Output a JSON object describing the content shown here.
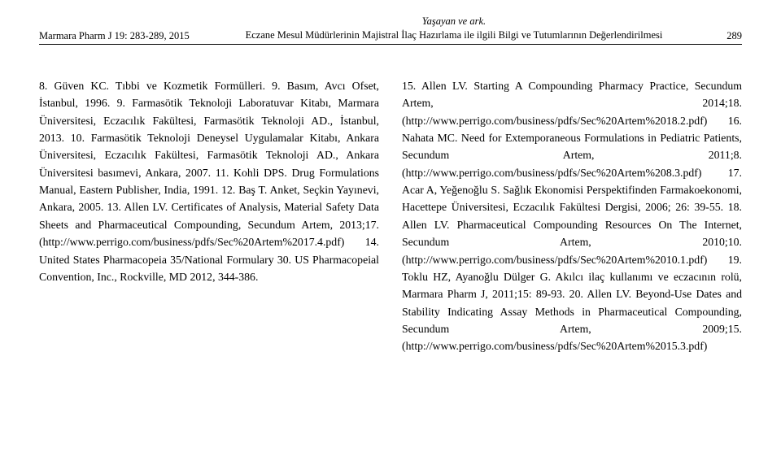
{
  "header": {
    "journal_ref": "Marmara Pharm J 19: 283-289, 2015",
    "authors_line": "Yaşayan ve ark.",
    "title_line": "Eczane Mesul Müdürlerinin Majistral İlaç Hazırlama ile ilgili Bilgi ve Tutumlarının Değerlendirilmesi",
    "page_no": "289"
  },
  "left_col": "8. Güven KC. Tıbbi ve Kozmetik Formülleri. 9. Basım, Avcı Ofset, İstanbul, 1996.\n9. Farmasötik Teknoloji Laboratuvar Kitabı, Marmara Üniversitesi, Eczacılık Fakültesi, Farmasötik Teknoloji AD., İstanbul, 2013.\n10. Farmasötik Teknoloji Deneysel Uygulamalar Kitabı, Ankara Üniversitesi, Eczacılık Fakültesi, Farmasötik Teknoloji AD., Ankara Üniversitesi basımevi, Ankara, 2007.\n11. Kohli DPS. Drug Formulations Manual, Eastern Publisher, India, 1991.\n12. Baş T. Anket, Seçkin Yayınevi, Ankara, 2005.\n13. Allen LV. Certificates of Analysis, Material Safety Data Sheets and Pharmaceutical Compounding, Secundum Artem, 2013;17. (http://www.perrigo.com/business/pdfs/Sec%20Artem%2017.4.pdf)\n14. United States Pharmacopeia 35/National Formulary 30. US Pharmacopeial Convention, Inc., Rockville, MD 2012, 344-386.",
  "right_col": "15. Allen LV. Starting A Compounding Pharmacy Practice, Secundum Artem, 2014;18. (http://www.perrigo.com/business/pdfs/Sec%20Artem%2018.2.pdf)\n16. Nahata MC. Need for Extemporaneous Formulations in Pediatric Patients, Secundum Artem, 2011;8. (http://www.perrigo.com/business/pdfs/Sec%20Artem%208.3.pdf)\n17. Acar A, Yeğenoğlu S. Sağlık Ekonomisi Perspektifinden Farmakoekonomi, Hacettepe Üniversitesi, Eczacılık Fakültesi Dergisi, 2006; 26: 39-55.\n18. Allen LV. Pharmaceutical Compounding Resources On The Internet, Secundum Artem, 2010;10. (http://www.perrigo.com/business/pdfs/Sec%20Artem%2010.1.pdf)\n19. Toklu HZ, Ayanoğlu Dülger G. Akılcı ilaç kullanımı ve eczacının rolü, Marmara Pharm J, 2011;15: 89-93.\n20. Allen LV. Beyond-Use Dates and Stability Indicating Assay Methods in Pharmaceutical Compounding, Secundum Artem, 2009;15. (http://www.perrigo.com/business/pdfs/Sec%20Artem%2015.3.pdf)"
}
